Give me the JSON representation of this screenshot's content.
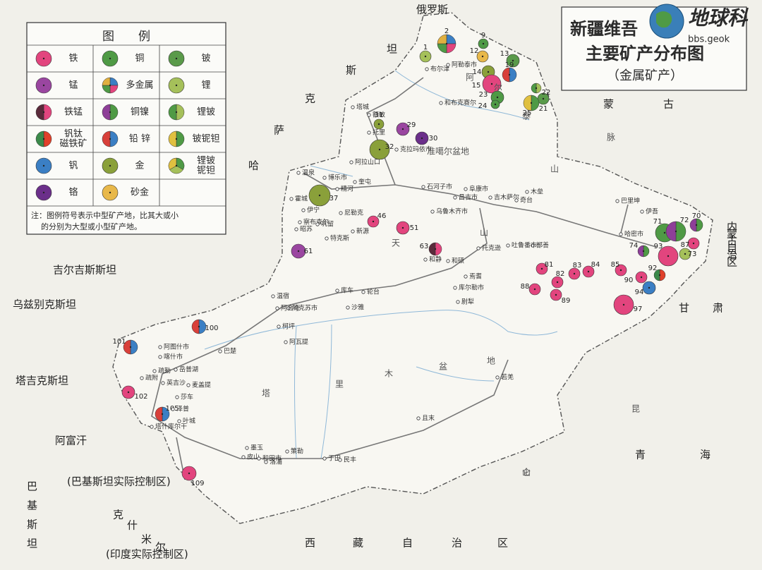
{
  "title": {
    "line1": "新疆维吾",
    "line2": "主要矿产分布图",
    "subtitle": "（金属矿产）",
    "watermark": "地球科",
    "watermark_url": "bbs.geok"
  },
  "legend": {
    "title": "图　　例",
    "items": [
      {
        "label": [
          "铁"
        ],
        "colors": [
          "#e2457e"
        ]
      },
      {
        "label": [
          "铜"
        ],
        "colors": [
          "#4f9a45"
        ]
      },
      {
        "label": [
          "铍"
        ],
        "colors": [
          "#5a9a4a"
        ]
      },
      {
        "label": [
          "锰"
        ],
        "colors": [
          "#9a46a0"
        ]
      },
      {
        "label": [
          "多金属"
        ],
        "colors": [
          "#3b7fc4",
          "#e2457e",
          "#4f9a45",
          "#e0b040"
        ]
      },
      {
        "label": [
          "锂"
        ],
        "colors": [
          "#a5c05a"
        ]
      },
      {
        "label": [
          "铁锰"
        ],
        "colors": [
          "#e2457e",
          "#5a2a3a"
        ]
      },
      {
        "label": [
          "铜镍"
        ],
        "colors": [
          "#4f9a45",
          "#8e3f98"
        ]
      },
      {
        "label": [
          "锂铍"
        ],
        "colors": [
          "#a5c05a",
          "#4f9a45"
        ]
      },
      {
        "label": [
          "钒钛",
          "磁铁矿"
        ],
        "colors": [
          "#e0402a",
          "#3b8a4a"
        ]
      },
      {
        "label": [
          "铅 锌"
        ],
        "colors": [
          "#3b7fc4",
          "#d8403a"
        ]
      },
      {
        "label": [
          "铍铌钽"
        ],
        "colors": [
          "#4f9a45",
          "#e0c040"
        ]
      },
      {
        "label": [
          "钒"
        ],
        "colors": [
          "#3b7fc4"
        ]
      },
      {
        "label": [
          "金"
        ],
        "colors": [
          "#8aa03a"
        ]
      },
      {
        "label": [
          "锂铍",
          "铌钽"
        ],
        "colors": [
          "#4f9a45",
          "#a5c05a",
          "#e0c040"
        ]
      },
      {
        "label": [
          "铬"
        ],
        "colors": [
          "#6b2f8a"
        ]
      },
      {
        "label": [
          "砂金"
        ],
        "colors": [
          "#e8b84a"
        ]
      }
    ],
    "note": [
      "注：图例符号表示中型矿产地，比其大或小",
      "的分别为大型或小型矿产地。"
    ]
  },
  "deposits": [
    "1",
    "2",
    "9",
    "12",
    "13",
    "14",
    "15",
    "19",
    "21",
    "22",
    "23",
    "24",
    "25",
    "29",
    "30",
    "31",
    "32",
    "37",
    "46",
    "51",
    "61",
    "63",
    "70",
    "71",
    "72",
    "73",
    "74",
    "81",
    "82",
    "83",
    "84",
    "85",
    "87",
    "88",
    "89",
    "90",
    "92",
    "93",
    "94",
    "97",
    "100",
    "101",
    "102",
    "105",
    "109"
  ],
  "regions": [
    "俄罗斯",
    "哈萨克斯坦",
    "蒙古",
    "吉尔吉斯斯坦",
    "乌兹别克斯坦",
    "塔吉克斯坦",
    "阿富汗",
    "巴基斯坦",
    "克什米尔",
    "(巴基斯坦实际控制区)",
    "(印度实际控制区)",
    "甘肃",
    "青海",
    "西藏自治区",
    "内蒙古自治区"
  ],
  "geo": [
    "准噶尔盆地",
    "塔里木盆地",
    "天山",
    "昆仑山",
    "脉",
    "阿尔泰山"
  ],
  "cities": [
    "布尔津",
    "阿勒泰市",
    "和布克赛尔",
    "塔城",
    "额敏",
    "托里",
    "克拉玛依市",
    "阿拉山口",
    "温泉",
    "博乐市",
    "精河",
    "奎屯",
    "霍城",
    "伊宁",
    "察布查尔",
    "昭苏",
    "特克斯",
    "巩留",
    "新源",
    "尼勒克",
    "石河子市",
    "昌吉市",
    "乌鲁木齐市",
    "阜康市",
    "吉木萨尔",
    "奇台",
    "木垒",
    "巴里坤",
    "伊吾",
    "哈密市",
    "鄯善",
    "吐鲁番市",
    "托克逊",
    "和静",
    "和硕",
    "焉耆",
    "库尔勒市",
    "尉犁",
    "轮台",
    "库车",
    "沙雅",
    "阿克苏市",
    "温宿",
    "柯坪",
    "阿瓦提",
    "阿合奇",
    "巴楚",
    "阿图什市",
    "喀什市",
    "疏勒",
    "疏附",
    "英吉沙",
    "岳普湖",
    "麦盖提",
    "莎车",
    "泽普",
    "叶城",
    "塔什库尔干",
    "皮山",
    "墨玉",
    "和田市",
    "洛浦",
    "策勒",
    "于田",
    "民丰",
    "且末",
    "若羌"
  ]
}
